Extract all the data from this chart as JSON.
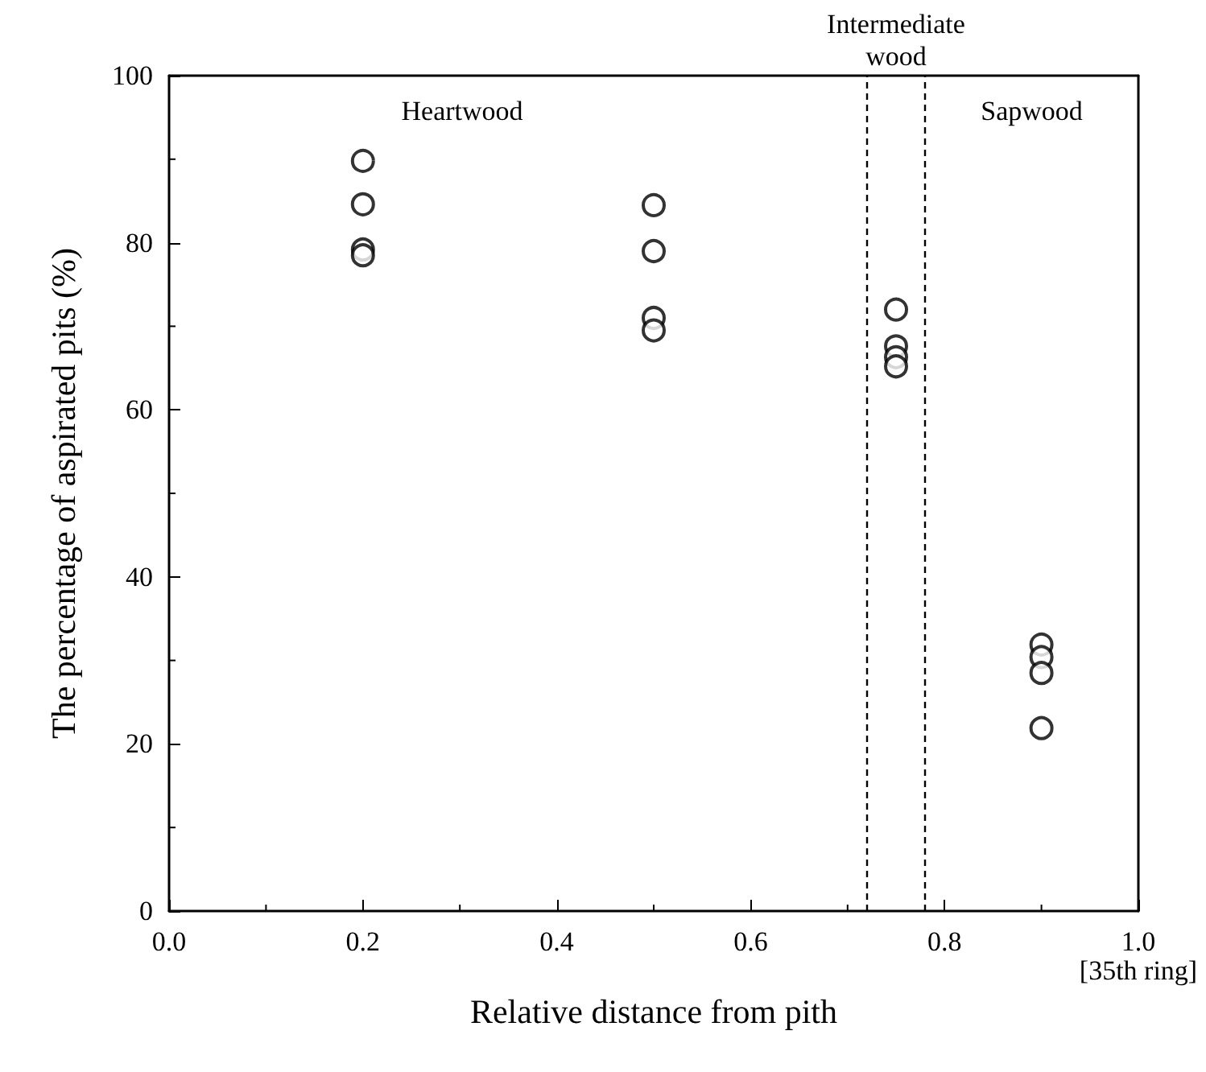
{
  "chart_data": {
    "type": "scatter",
    "xlabel": "Relative distance from pith",
    "ylabel": "The percentage of aspirated pits (%)",
    "x": [
      0.2,
      0.2,
      0.2,
      0.2,
      0.5,
      0.5,
      0.5,
      0.5,
      0.75,
      0.75,
      0.75,
      0.75,
      0.9,
      0.9,
      0.9,
      0.9
    ],
    "values": [
      89.8,
      84.6,
      79.2,
      78.5,
      84.5,
      79,
      71,
      69.5,
      72,
      67.6,
      66.3,
      65.2,
      31.9,
      30.4,
      28.5,
      21.9
    ],
    "color": "#000000",
    "marker": "circle",
    "xlim": [
      0,
      1
    ],
    "xticks": [
      {
        "value": 0,
        "label": "0.0"
      },
      {
        "value": 0.2,
        "label": "0.2"
      },
      0.4,
      0.6,
      0.8,
      {
        "value": 1,
        "label": "1.0\n[35th ring]"
      }
    ],
    "ylim": [
      0,
      100
    ],
    "yticks": [
      0,
      20,
      40,
      60,
      80,
      100
    ],
    "ref_lines": [
      {
        "axis": "x",
        "value": 0.72,
        "line_style": "dashed",
        "color": "#000000"
      },
      {
        "axis": "x",
        "value": 0.78,
        "line_style": "dashed",
        "color": "#000000"
      }
    ],
    "annotations": [
      "Heartwood",
      "Intermediate\nwood",
      "Sapwood"
    ],
    "grid": false
  }
}
